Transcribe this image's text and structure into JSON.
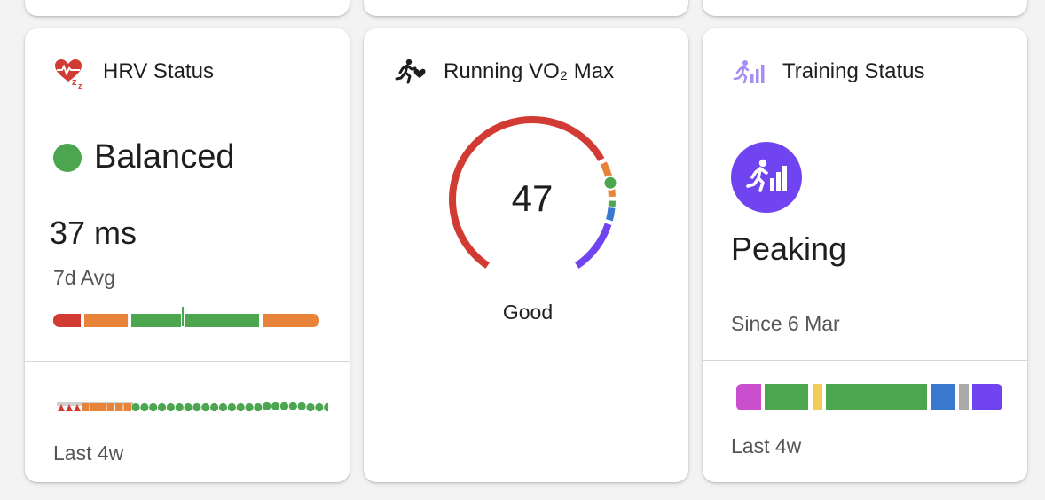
{
  "hrv": {
    "title": "HRV Status",
    "icon": "heart-sleep-icon",
    "status_dot_color": "#4ba64f",
    "status": "Balanced",
    "value": "37 ms",
    "avg_label": "7d Avg",
    "footer": "Last 4w",
    "range_colors": [
      "#d13b33",
      "#e8833a",
      "#4ba64f",
      "#e8833a"
    ]
  },
  "vo2": {
    "title": "Running VO₂ Max",
    "icon": "runner-heart-icon",
    "value": "47",
    "rating": "Good",
    "gauge_colors": [
      "#d13b33",
      "#e8833a",
      "#4ba64f",
      "#3a78d0",
      "#7044f0"
    ]
  },
  "training": {
    "title": "Training Status",
    "icon": "training-status-icon",
    "badge_color": "#7044f0",
    "status": "Peaking",
    "since": "Since 6 Mar",
    "footer": "Last 4w",
    "history_colors": [
      "#c94fce",
      "#4ba64f",
      "#f1cc5b",
      "#4ba64f",
      "#3a78d0",
      "#aaaaaa",
      "#7044f0"
    ]
  }
}
